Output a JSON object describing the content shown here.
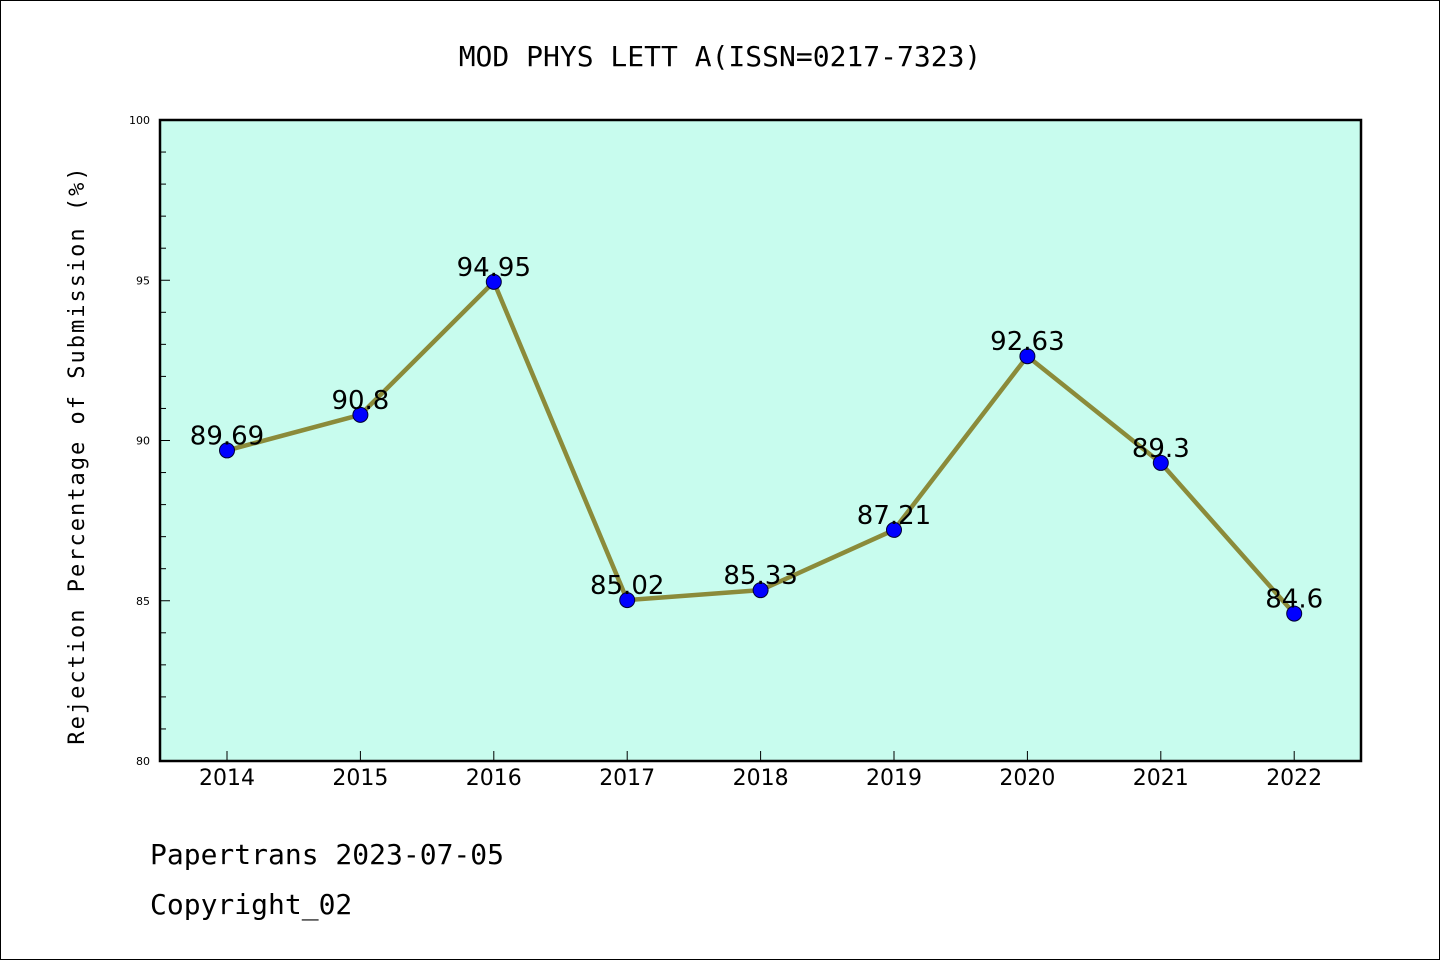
{
  "chart_data": {
    "type": "line",
    "title": "MOD PHYS LETT A(ISSN=0217-7323)",
    "xlabel": "",
    "ylabel": "Rejection Percentage of Submission (%)",
    "categories": [
      "2014",
      "2015",
      "2016",
      "2017",
      "2018",
      "2019",
      "2020",
      "2021",
      "2022"
    ],
    "values": [
      89.69,
      90.8,
      94.95,
      85.02,
      85.33,
      87.21,
      92.63,
      89.3,
      84.6
    ],
    "data_labels": [
      "89.69",
      "90.8",
      "94.95",
      "85.02",
      "85.33",
      "87.21",
      "92.63",
      "89.3",
      "84.6"
    ],
    "ylim": [
      80,
      100
    ],
    "yticks": [
      "80",
      "85",
      "90",
      "95",
      "100"
    ],
    "grid": false,
    "colors": {
      "plot_background": "#c8fcee",
      "line": "#8b8b3a",
      "marker": "#0000ff"
    }
  },
  "footer": {
    "line1": "Papertrans 2023-07-05",
    "line2": "Copyright_02"
  }
}
